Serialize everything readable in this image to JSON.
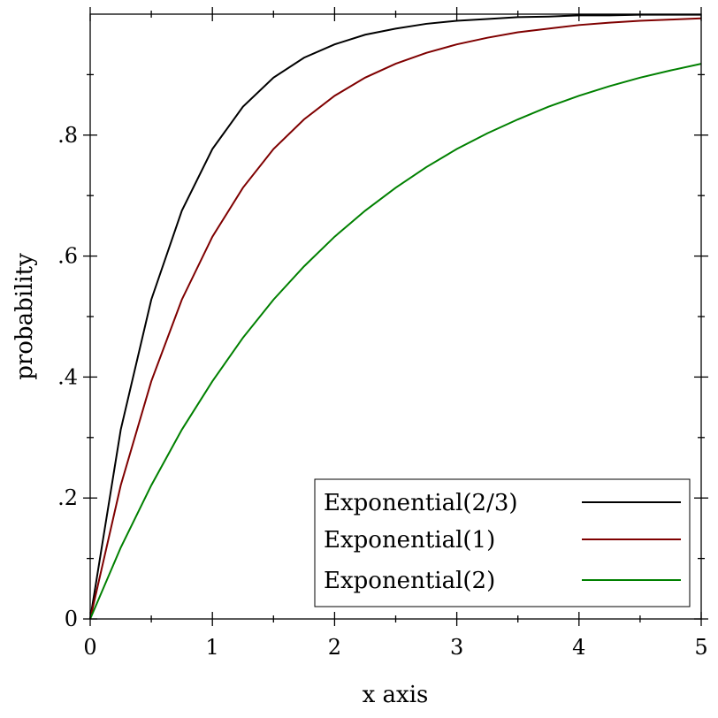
{
  "chart_data": {
    "type": "line",
    "xlabel": "x axis",
    "ylabel": "probability",
    "xlim": [
      0,
      5
    ],
    "ylim": [
      0,
      1
    ],
    "x_ticks": [
      {
        "value": 0,
        "label": "0"
      },
      {
        "value": 1,
        "label": "1"
      },
      {
        "value": 2,
        "label": "2"
      },
      {
        "value": 3,
        "label": "3"
      },
      {
        "value": 4,
        "label": "4"
      },
      {
        "value": 5,
        "label": "5"
      }
    ],
    "y_ticks": [
      {
        "value": 0,
        "label": "0"
      },
      {
        "value": 0.2,
        "label": ".2"
      },
      {
        "value": 0.4,
        "label": ".4"
      },
      {
        "value": 0.6,
        "label": ".6"
      },
      {
        "value": 0.8,
        "label": ".8"
      }
    ],
    "grid": false,
    "legend_position": "bottom-right",
    "series": [
      {
        "name": "Exponential(2/3)",
        "color": "#000000",
        "x": [
          0,
          0.25,
          0.5,
          0.75,
          1,
          1.25,
          1.5,
          1.75,
          2,
          2.25,
          2.5,
          2.75,
          3,
          3.25,
          3.5,
          3.75,
          4,
          4.25,
          4.5,
          4.75,
          5
        ],
        "y": [
          0,
          0.313,
          0.528,
          0.675,
          0.777,
          0.847,
          0.895,
          0.928,
          0.95,
          0.966,
          0.976,
          0.984,
          0.989,
          0.992,
          0.995,
          0.996,
          0.998,
          0.998,
          0.999,
          0.999,
          0.999
        ]
      },
      {
        "name": "Exponential(1)",
        "color": "#7f0000",
        "x": [
          0,
          0.25,
          0.5,
          0.75,
          1,
          1.25,
          1.5,
          1.75,
          2,
          2.25,
          2.5,
          2.75,
          3,
          3.25,
          3.5,
          3.75,
          4,
          4.25,
          4.5,
          4.75,
          5
        ],
        "y": [
          0,
          0.221,
          0.393,
          0.528,
          0.632,
          0.713,
          0.777,
          0.826,
          0.865,
          0.895,
          0.918,
          0.936,
          0.95,
          0.961,
          0.97,
          0.976,
          0.982,
          0.986,
          0.989,
          0.991,
          0.993
        ]
      },
      {
        "name": "Exponential(2)",
        "color": "#008000",
        "x": [
          0,
          0.25,
          0.5,
          0.75,
          1,
          1.25,
          1.5,
          1.75,
          2,
          2.25,
          2.5,
          2.75,
          3,
          3.25,
          3.5,
          3.75,
          4,
          4.25,
          4.5,
          4.75,
          5
        ],
        "y": [
          0,
          0.118,
          0.221,
          0.313,
          0.393,
          0.465,
          0.528,
          0.583,
          0.632,
          0.675,
          0.713,
          0.747,
          0.777,
          0.803,
          0.826,
          0.847,
          0.865,
          0.881,
          0.895,
          0.907,
          0.918
        ]
      }
    ]
  }
}
